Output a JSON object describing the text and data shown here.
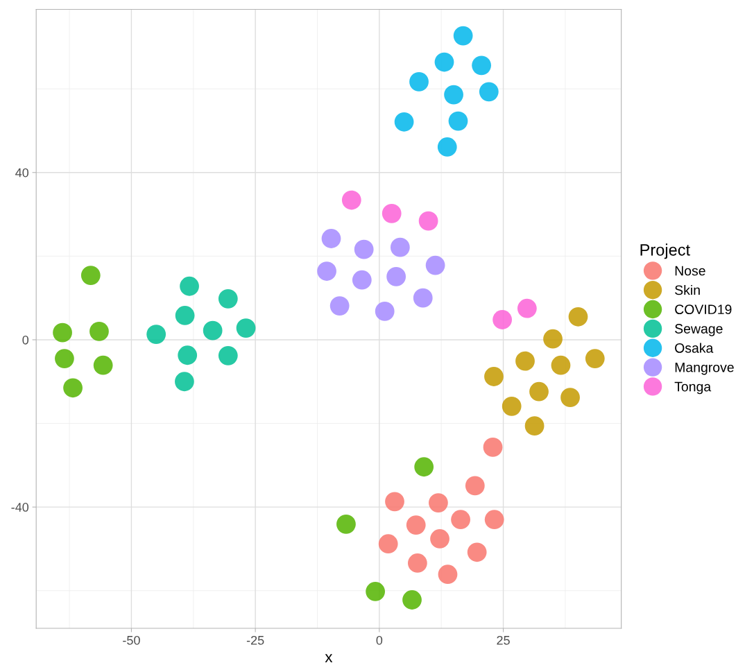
{
  "chart_data": {
    "type": "scatter",
    "xlabel": "x",
    "legend_title": "Project",
    "legend": "right",
    "grid": true,
    "marker": "circle",
    "xlim": [
      -69.2,
      48.8
    ],
    "ylim": [
      -69.0,
      79.0
    ],
    "xticks": [
      -50,
      -25,
      0,
      25
    ],
    "yticks": [
      -40,
      0,
      40
    ],
    "series": [
      {
        "name": "Nose",
        "color": "#f8766d",
        "x": [
          3.1,
          11.9,
          19.3,
          22.9,
          7.4,
          16.4,
          23.2,
          1.8,
          12.2,
          7.7,
          19.7,
          13.8
        ],
        "values": [
          -38.7,
          -39.0,
          -34.9,
          -25.7,
          -44.3,
          -43.0,
          -43.0,
          -48.8,
          -47.6,
          -53.4,
          -50.8,
          -56.1
        ]
      },
      {
        "name": "Skin",
        "color": "#c49a00",
        "x": [
          40.1,
          35.0,
          43.5,
          29.4,
          36.6,
          23.1,
          32.2,
          38.5,
          26.7,
          31.3
        ],
        "values": [
          5.5,
          0.2,
          -4.5,
          -5.1,
          -6.1,
          -8.8,
          -12.4,
          -13.8,
          -15.9,
          -20.6
        ]
      },
      {
        "name": "COVID19",
        "color": "#53b400",
        "x": [
          -58.2,
          -63.9,
          -56.5,
          -63.5,
          -55.7,
          -61.8,
          9.0,
          -6.7,
          -0.8,
          6.6
        ],
        "values": [
          15.4,
          1.7,
          2.0,
          -4.5,
          -6.1,
          -11.5,
          -30.4,
          -44.1,
          -60.2,
          -62.2
        ]
      },
      {
        "name": "Sewage",
        "color": "#00c094",
        "x": [
          -38.3,
          -30.5,
          -39.2,
          -26.9,
          -33.6,
          -45.0,
          -38.7,
          -30.5,
          -39.3
        ],
        "values": [
          12.8,
          9.8,
          5.8,
          2.8,
          2.2,
          1.3,
          -3.7,
          -3.8,
          -10.0
        ]
      },
      {
        "name": "Osaka",
        "color": "#00b6eb",
        "x": [
          16.9,
          13.1,
          20.6,
          8.0,
          15.0,
          22.1,
          5.0,
          15.9,
          13.7
        ],
        "values": [
          72.7,
          66.4,
          65.6,
          61.7,
          58.6,
          59.3,
          52.1,
          52.3,
          46.1
        ]
      },
      {
        "name": "Mangrove",
        "color": "#a58aff",
        "x": [
          -9.7,
          -3.1,
          4.2,
          -10.6,
          11.3,
          -3.5,
          3.4,
          -8.0,
          8.8,
          1.1
        ],
        "values": [
          24.2,
          21.6,
          22.1,
          16.4,
          17.8,
          14.3,
          15.1,
          8.1,
          10.0,
          6.8
        ]
      },
      {
        "name": "Tonga",
        "color": "#fb61d7",
        "x": [
          -5.6,
          2.5,
          9.9,
          29.8,
          24.8
        ],
        "values": [
          33.4,
          30.2,
          28.4,
          7.5,
          4.8
        ]
      }
    ]
  }
}
